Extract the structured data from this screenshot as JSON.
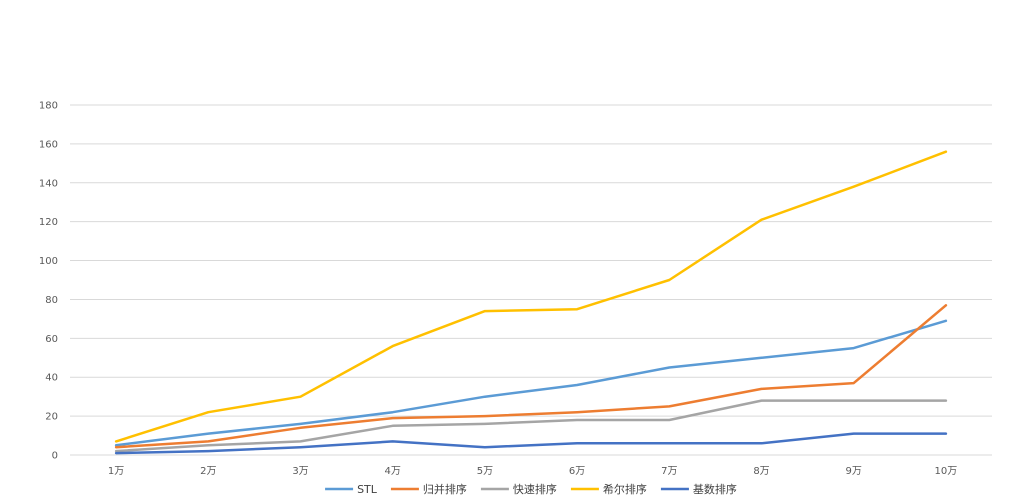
{
  "chart_data": {
    "type": "line",
    "title": "",
    "xlabel": "",
    "ylabel": "",
    "categories": [
      "1万",
      "2万",
      "3万",
      "4万",
      "5万",
      "6万",
      "7万",
      "8万",
      "9万",
      "10万"
    ],
    "ylim": [
      0,
      180
    ],
    "yticks": [
      0,
      20,
      40,
      60,
      80,
      100,
      120,
      140,
      160,
      180
    ],
    "grid": true,
    "legend": "bottom",
    "series": [
      {
        "name": "STL",
        "color": "#5b9bd5",
        "values": [
          5,
          11,
          16,
          22,
          30,
          36,
          45,
          50,
          55,
          69
        ]
      },
      {
        "name": "归并排序",
        "color": "#ed7d31",
        "values": [
          4,
          7,
          14,
          19,
          20,
          22,
          25,
          34,
          37,
          77
        ]
      },
      {
        "name": "快速排序",
        "color": "#a5a5a5",
        "values": [
          2,
          5,
          7,
          15,
          16,
          18,
          18,
          28,
          28,
          28
        ]
      },
      {
        "name": "希尔排序",
        "color": "#ffc000",
        "values": [
          7,
          22,
          30,
          56,
          74,
          75,
          90,
          121,
          138,
          156
        ]
      },
      {
        "name": "基数排序",
        "color": "#4472c4",
        "values": [
          1,
          2,
          4,
          7,
          4,
          6,
          6,
          6,
          11,
          11
        ]
      }
    ]
  }
}
